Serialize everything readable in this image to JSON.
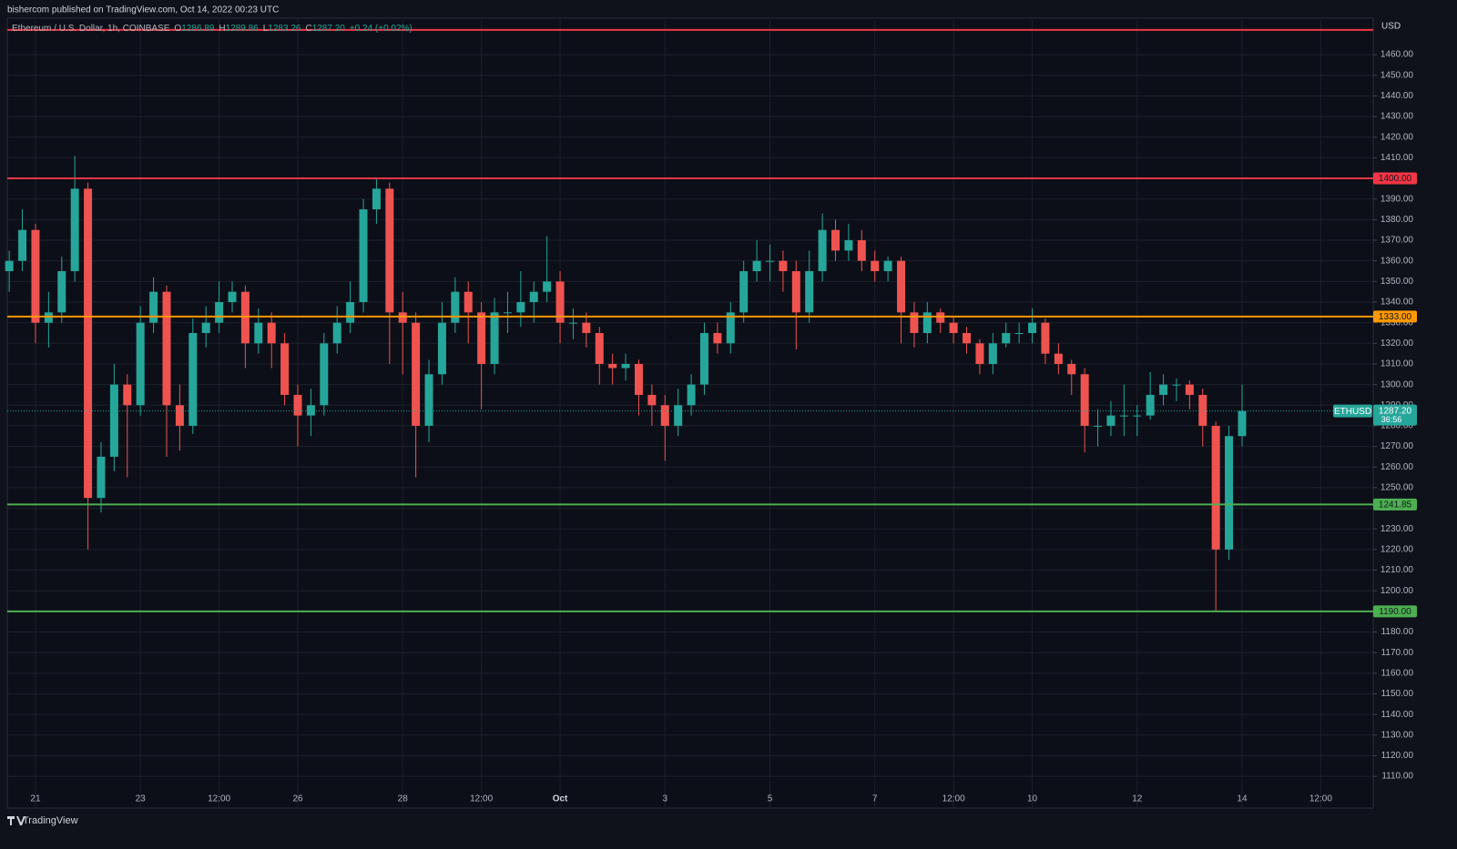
{
  "header": "bishercom published on TradingView.com, Oct 14, 2022 00:23 UTC",
  "footer": "TradingView",
  "chart_data": {
    "type": "candlestick",
    "legend": {
      "title": "Ethereum / U.S. Dollar, 1h, COINBASE",
      "items": [
        {
          "key": "O",
          "value": "1286.89"
        },
        {
          "key": "H",
          "value": "1289.86"
        },
        {
          "key": "L",
          "value": "1283.26"
        },
        {
          "key": "C",
          "value": "1287.20"
        }
      ],
      "change": "+0.24 (+0.02%)"
    },
    "currency": "USD",
    "up_color": "#26a69a",
    "down_color": "#ef5350",
    "grid": true,
    "xlim": [
      -12.9,
      612
    ],
    "ylim": [
      1094.6,
      1477.7
    ],
    "xticks": [
      {
        "value": 0,
        "label": "21"
      },
      {
        "value": 48,
        "label": "23"
      },
      {
        "value": 84,
        "label": "12:00"
      },
      {
        "value": 120,
        "label": "26"
      },
      {
        "value": 168,
        "label": "28"
      },
      {
        "value": 204,
        "label": "12:00"
      },
      {
        "value": 240,
        "label": "Oct"
      },
      {
        "value": 288,
        "label": "3"
      },
      {
        "value": 336,
        "label": "5"
      },
      {
        "value": 384,
        "label": "7"
      },
      {
        "value": 420,
        "label": "12:00"
      },
      {
        "value": 456,
        "label": "10"
      },
      {
        "value": 504,
        "label": "12"
      },
      {
        "value": 552,
        "label": "14"
      },
      {
        "value": 588,
        "label": "12:00"
      }
    ],
    "yticks": [
      {
        "value": 1110,
        "label": "1110.00"
      },
      {
        "value": 1120,
        "label": "1120.00"
      },
      {
        "value": 1130,
        "label": "1130.00"
      },
      {
        "value": 1140,
        "label": "1140.00"
      },
      {
        "value": 1150,
        "label": "1150.00"
      },
      {
        "value": 1160,
        "label": "1160.00"
      },
      {
        "value": 1170,
        "label": "1170.00"
      },
      {
        "value": 1180,
        "label": "1180.00"
      },
      {
        "value": 1190,
        "label": "1190.00"
      },
      {
        "value": 1200,
        "label": "1200.00"
      },
      {
        "value": 1210,
        "label": "1210.00"
      },
      {
        "value": 1220,
        "label": "1220.00"
      },
      {
        "value": 1230,
        "label": "1230.00"
      },
      {
        "value": 1240,
        "label": "1240.00"
      },
      {
        "value": 1250,
        "label": "1250.00"
      },
      {
        "value": 1260,
        "label": "1260.00"
      },
      {
        "value": 1270,
        "label": "1270.00"
      },
      {
        "value": 1280,
        "label": "1280.00"
      },
      {
        "value": 1290,
        "label": "1290.00"
      },
      {
        "value": 1300,
        "label": "1300.00"
      },
      {
        "value": 1310,
        "label": "1310.00"
      },
      {
        "value": 1320,
        "label": "1320.00"
      },
      {
        "value": 1330,
        "label": "1330.00"
      },
      {
        "value": 1340,
        "label": "1340.00"
      },
      {
        "value": 1350,
        "label": "1350.00"
      },
      {
        "value": 1360,
        "label": "1360.00"
      },
      {
        "value": 1370,
        "label": "1370.00"
      },
      {
        "value": 1380,
        "label": "1380.00"
      },
      {
        "value": 1390,
        "label": "1390.00"
      },
      {
        "value": 1400,
        "label": "1400.00"
      },
      {
        "value": 1410,
        "label": "1410.00"
      },
      {
        "value": 1420,
        "label": "1420.00"
      },
      {
        "value": 1430,
        "label": "1430.00"
      },
      {
        "value": 1440,
        "label": "1440.00"
      },
      {
        "value": 1450,
        "label": "1450.00"
      },
      {
        "value": 1460,
        "label": "1460.00"
      }
    ],
    "levels": [
      {
        "value": 1472,
        "color": "#f23645"
      },
      {
        "value": 1400,
        "label": "1400.00",
        "color": "#f23645"
      },
      {
        "value": 1333,
        "label": "1333.00",
        "color": "#ff9800"
      },
      {
        "value": 1241.85,
        "label": "1241.85",
        "color": "#4caf50"
      },
      {
        "value": 1190,
        "label": "1190.00",
        "color": "#4caf50"
      }
    ],
    "last_price": {
      "symbol": "ETHUSD",
      "value": 1287.2,
      "label": "1287.20",
      "countdown": "36:56",
      "color": "#26a69a"
    },
    "x": [
      -12,
      -6,
      0,
      6,
      12,
      18,
      24,
      30,
      36,
      42,
      48,
      54,
      60,
      66,
      72,
      78,
      84,
      90,
      96,
      102,
      108,
      114,
      120,
      126,
      132,
      138,
      144,
      150,
      156,
      162,
      168,
      174,
      180,
      186,
      192,
      198,
      204,
      210,
      216,
      222,
      228,
      234,
      240,
      246,
      252,
      258,
      264,
      270,
      276,
      282,
      288,
      294,
      300,
      306,
      312,
      318,
      324,
      330,
      336,
      342,
      348,
      354,
      360,
      366,
      372,
      378,
      384,
      390,
      396,
      402,
      408,
      414,
      420,
      426,
      432,
      438,
      444,
      450,
      456,
      462,
      468,
      474,
      480,
      486,
      492,
      498,
      504,
      510,
      516,
      522,
      528,
      534,
      540,
      546,
      552
    ],
    "open": [
      1355,
      1360,
      1375,
      1330,
      1335,
      1355,
      1395,
      1245,
      1265,
      1300,
      1290,
      1330,
      1345,
      1290,
      1280,
      1325,
      1330,
      1340,
      1345,
      1320,
      1330,
      1320,
      1295,
      1285,
      1290,
      1320,
      1330,
      1340,
      1385,
      1395,
      1335,
      1330,
      1280,
      1305,
      1330,
      1345,
      1335,
      1310,
      1335,
      1335,
      1340,
      1345,
      1350,
      1330,
      1330,
      1325,
      1310,
      1308,
      1310,
      1295,
      1290,
      1280,
      1290,
      1300,
      1325,
      1320,
      1335,
      1355,
      1360,
      1360,
      1355,
      1335,
      1355,
      1375,
      1365,
      1370,
      1360,
      1355,
      1360,
      1335,
      1325,
      1335,
      1330,
      1325,
      1320,
      1310,
      1320,
      1325,
      1325,
      1330,
      1315,
      1310,
      1305,
      1280,
      1280,
      1285,
      1285,
      1285,
      1295,
      1300,
      1300,
      1295,
      1280,
      1220,
      1275
    ],
    "high": [
      1365,
      1385,
      1378,
      1345,
      1362,
      1411,
      1398,
      1272,
      1310,
      1305,
      1338,
      1352,
      1348,
      1300,
      1332,
      1338,
      1350,
      1350,
      1348,
      1337,
      1335,
      1325,
      1300,
      1298,
      1325,
      1338,
      1350,
      1390,
      1400,
      1398,
      1345,
      1335,
      1312,
      1340,
      1352,
      1350,
      1340,
      1342,
      1345,
      1355,
      1350,
      1372,
      1355,
      1337,
      1335,
      1328,
      1315,
      1315,
      1312,
      1300,
      1295,
      1298,
      1305,
      1330,
      1330,
      1340,
      1360,
      1370,
      1368,
      1365,
      1360,
      1365,
      1383,
      1380,
      1378,
      1375,
      1365,
      1362,
      1362,
      1340,
      1340,
      1337,
      1333,
      1328,
      1322,
      1325,
      1330,
      1330,
      1337,
      1332,
      1320,
      1312,
      1308,
      1288,
      1292,
      1300,
      1290,
      1306,
      1305,
      1303,
      1302,
      1298,
      1282,
      1280,
      1300
    ],
    "low": [
      1345,
      1355,
      1320,
      1318,
      1330,
      1350,
      1220,
      1238,
      1258,
      1255,
      1285,
      1325,
      1265,
      1268,
      1276,
      1318,
      1325,
      1335,
      1308,
      1315,
      1308,
      1290,
      1270,
      1275,
      1285,
      1315,
      1325,
      1335,
      1378,
      1310,
      1305,
      1255,
      1272,
      1300,
      1325,
      1320,
      1288,
      1305,
      1325,
      1328,
      1330,
      1340,
      1320,
      1322,
      1318,
      1300,
      1300,
      1302,
      1285,
      1280,
      1263,
      1275,
      1285,
      1295,
      1315,
      1315,
      1330,
      1350,
      1350,
      1345,
      1317,
      1330,
      1350,
      1360,
      1360,
      1355,
      1350,
      1350,
      1320,
      1318,
      1320,
      1325,
      1320,
      1315,
      1305,
      1305,
      1318,
      1320,
      1320,
      1310,
      1305,
      1295,
      1267,
      1270,
      1275,
      1275,
      1275,
      1283,
      1290,
      1292,
      1288,
      1270,
      1190,
      1215,
      1270
    ],
    "close": [
      1360,
      1375,
      1330,
      1335,
      1355,
      1395,
      1245,
      1265,
      1300,
      1290,
      1330,
      1345,
      1290,
      1280,
      1325,
      1330,
      1340,
      1345,
      1320,
      1330,
      1320,
      1295,
      1285,
      1290,
      1320,
      1330,
      1340,
      1385,
      1395,
      1335,
      1330,
      1280,
      1305,
      1330,
      1345,
      1335,
      1310,
      1335,
      1335,
      1340,
      1345,
      1350,
      1330,
      1330,
      1325,
      1310,
      1308,
      1310,
      1295,
      1290,
      1280,
      1290,
      1300,
      1325,
      1320,
      1335,
      1355,
      1360,
      1360,
      1355,
      1335,
      1355,
      1375,
      1365,
      1370,
      1360,
      1355,
      1360,
      1335,
      1325,
      1335,
      1330,
      1325,
      1320,
      1310,
      1320,
      1325,
      1325,
      1330,
      1315,
      1310,
      1305,
      1280,
      1280,
      1285,
      1285,
      1285,
      1295,
      1300,
      1300,
      1295,
      1280,
      1220,
      1275,
      1287.2
    ]
  }
}
